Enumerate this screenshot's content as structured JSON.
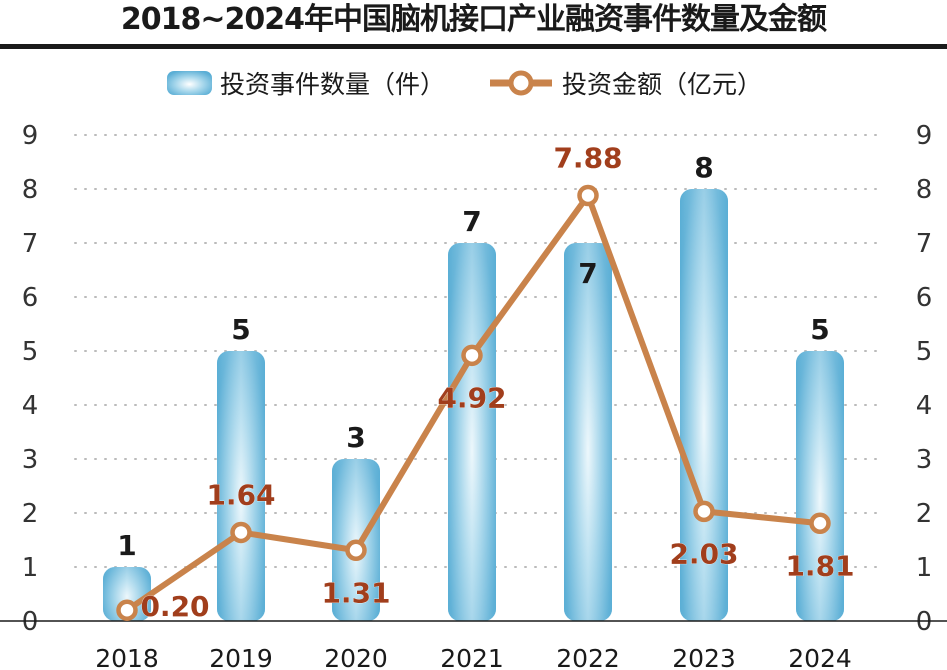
{
  "chart_data": {
    "type": "bar+line",
    "title": "2018~2024年中国脑机接口产业融资事件数量及金额",
    "categories": [
      "2018",
      "2019",
      "2020",
      "2021",
      "2022",
      "2023",
      "2024"
    ],
    "series": [
      {
        "name": "投资事件数量（件）",
        "type": "bar",
        "values": [
          1,
          5,
          3,
          7,
          7,
          8,
          5
        ],
        "labels": [
          "1",
          "5",
          "3",
          "7",
          "7",
          "8",
          "5"
        ]
      },
      {
        "name": "投资金额（亿元）",
        "type": "line",
        "values": [
          0.2,
          1.64,
          1.31,
          4.92,
          7.88,
          2.03,
          1.81
        ],
        "labels": [
          "0.20",
          "1.64",
          "1.31",
          "4.92",
          "7.88",
          "2.03",
          "1.81"
        ]
      }
    ],
    "ylim": [
      0,
      9
    ],
    "yticks": [
      "0",
      "1",
      "2",
      "3",
      "4",
      "5",
      "6",
      "7",
      "8",
      "9"
    ],
    "y2lim": [
      0,
      9
    ],
    "grid": true,
    "legend": "top-center",
    "colors": {
      "bar": "#5fb1d6",
      "line": "#c9834b",
      "line_label": "#a13e1c",
      "bar_label": "#1a1a1a"
    }
  }
}
